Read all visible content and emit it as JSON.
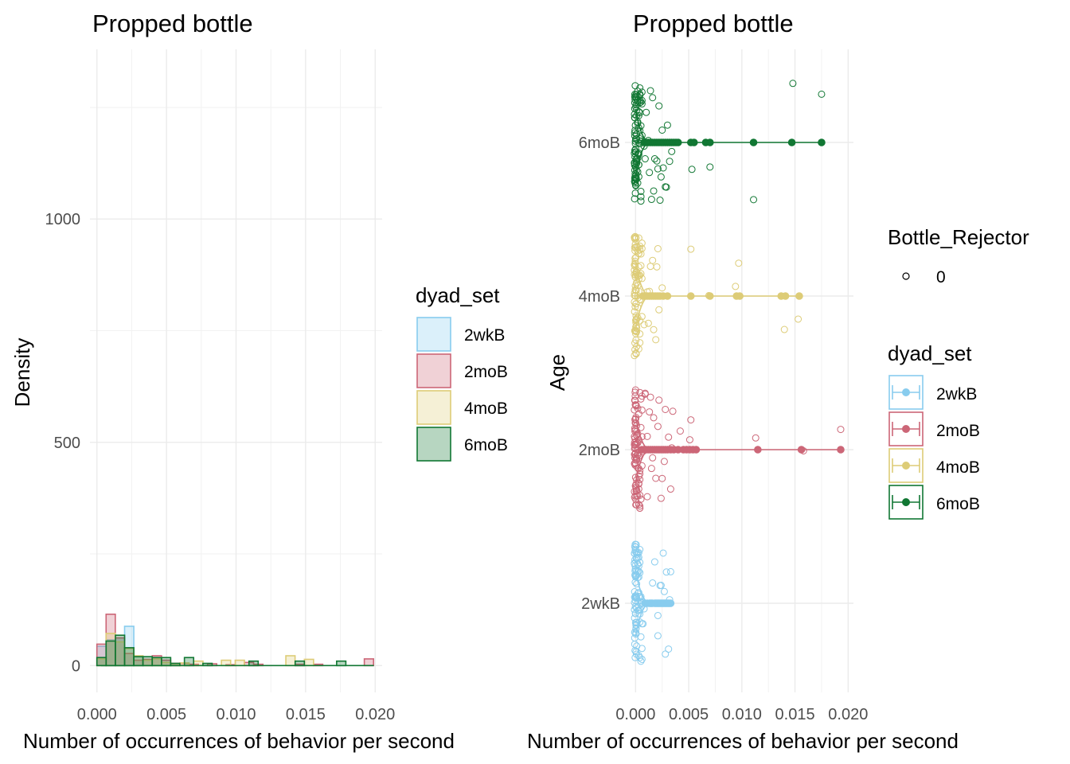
{
  "colors": {
    "2wkB": "#88CCEE",
    "2moB": "#CC6677",
    "4moB": "#DDCC77",
    "6moB": "#117733"
  },
  "chart_data": [
    {
      "type": "histogram",
      "title": "Propped bottle",
      "xlabel": "Number of occurrences of behavior per second",
      "ylabel": "Density",
      "xlim": [
        -0.0005,
        0.0205
      ],
      "ylim": [
        -60,
        1380
      ],
      "x_ticks": [
        0.0,
        0.005,
        0.01,
        0.015,
        0.02
      ],
      "x_tick_labels": [
        "0.000",
        "0.005",
        "0.010",
        "0.015",
        "0.020"
      ],
      "y_ticks": [
        0,
        500,
        1000
      ],
      "y_tick_labels": [
        "0",
        "500",
        "1000"
      ],
      "bin_width": 0.000662,
      "grid": true,
      "legend": {
        "title": "dyad_set",
        "position": "right",
        "entries": [
          "2wkB",
          "2moB",
          "4moB",
          "6moB"
        ]
      },
      "series": [
        {
          "name": "2wkB",
          "bins": [
            [
              0.00033,
              43
            ],
            [
              0.00099,
              58
            ],
            [
              0.00166,
              62
            ],
            [
              0.00232,
              88
            ],
            [
              0.00298,
              20
            ]
          ]
        },
        {
          "name": "2moB",
          "bins": [
            [
              0.00033,
              48
            ],
            [
              0.00099,
              115
            ],
            [
              0.00166,
              62
            ],
            [
              0.00232,
              27
            ],
            [
              0.00298,
              12
            ],
            [
              0.00364,
              14
            ],
            [
              0.00431,
              22
            ],
            [
              0.00497,
              12
            ],
            [
              0.00563,
              5
            ],
            [
              0.00629,
              5
            ],
            [
              0.00696,
              3
            ],
            [
              0.00828,
              4
            ],
            [
              0.00961,
              2
            ],
            [
              0.01093,
              7
            ],
            [
              0.0116,
              3
            ],
            [
              0.01458,
              3
            ],
            [
              0.0159,
              3
            ],
            [
              0.01955,
              15
            ]
          ]
        },
        {
          "name": "4moB",
          "bins": [
            [
              0.00033,
              15
            ],
            [
              0.00099,
              72
            ],
            [
              0.00166,
              53
            ],
            [
              0.00232,
              38
            ],
            [
              0.00298,
              22
            ],
            [
              0.00364,
              12
            ],
            [
              0.00431,
              15
            ],
            [
              0.00497,
              7
            ],
            [
              0.00563,
              4
            ],
            [
              0.00629,
              6
            ],
            [
              0.00729,
              10
            ],
            [
              0.00928,
              12
            ],
            [
              0.01027,
              12
            ],
            [
              0.01391,
              22
            ],
            [
              0.01524,
              14
            ]
          ]
        },
        {
          "name": "6moB",
          "bins": [
            [
              0.00033,
              18
            ],
            [
              0.00099,
              55
            ],
            [
              0.00166,
              68
            ],
            [
              0.00232,
              40
            ],
            [
              0.00298,
              20
            ],
            [
              0.00364,
              20
            ],
            [
              0.00431,
              18
            ],
            [
              0.00497,
              18
            ],
            [
              0.00563,
              5
            ],
            [
              0.00662,
              18
            ],
            [
              0.00795,
              5
            ],
            [
              0.01126,
              10
            ],
            [
              0.01458,
              10
            ],
            [
              0.01756,
              10
            ]
          ]
        }
      ]
    },
    {
      "type": "scatter",
      "title": "Propped bottle",
      "xlabel": "Number of occurrences of behavior per second",
      "ylabel": "Age",
      "xlim": [
        -0.001,
        0.0205
      ],
      "x_ticks": [
        0.0,
        0.005,
        0.01,
        0.015,
        0.02
      ],
      "x_tick_labels": [
        "0.000",
        "0.005",
        "0.010",
        "0.015",
        "0.020"
      ],
      "categories": [
        "2wkB",
        "2moB",
        "4moB",
        "6moB"
      ],
      "grid": true,
      "legends": [
        {
          "title": "Bottle_Rejector",
          "entries": [
            "0"
          ]
        },
        {
          "title": "dyad_set",
          "entries": [
            "2wkB",
            "2moB",
            "4moB",
            "6moB"
          ]
        }
      ],
      "series": [
        {
          "name": "2wkB",
          "points": [
            0.0002,
            0.0002,
            0.0003,
            0.0004,
            0.0003,
            0.0005,
            0.0002,
            0.0006,
            0.0004,
            0.0003,
            0.0002,
            0.0005,
            0.0004,
            0.0003,
            0.0006,
            0.0002,
            0.0007,
            0.0004,
            0.0003,
            0.0005,
            0.0002,
            0.0004,
            0.0003,
            0.0006,
            0.0002,
            0.0005,
            0.0004,
            0.0003,
            0.0002,
            0.0004,
            0.0006,
            0.0003,
            0.0002,
            0.0005,
            0.0004,
            0.0003,
            0.0008,
            0.0016,
            0.0018,
            0.0021,
            0.0023,
            0.0024,
            0.0026,
            0.0028,
            0.0029,
            0.0031,
            0.0032,
            0.0033,
            0.0021,
            0.0027
          ],
          "center_points": [
            0.0009,
            0.0011,
            0.0013,
            0.0014,
            0.0015,
            0.0016,
            0.0018,
            0.0019,
            0.002,
            0.0021,
            0.0022,
            0.0023,
            0.0024,
            0.0025,
            0.0026,
            0.0027,
            0.0028,
            0.0029,
            0.003,
            0.0031,
            0.0032,
            0.0033
          ],
          "line_range": [
            0.0,
            0.0033
          ]
        },
        {
          "name": "2moB",
          "points": [
            0.0002,
            0.0003,
            0.0002,
            0.0004,
            0.0003,
            0.0005,
            0.0002,
            0.0004,
            0.0006,
            0.0003,
            0.0002,
            0.0005,
            0.0004,
            0.0003,
            0.0002,
            0.0006,
            0.0004,
            0.0003,
            0.0005,
            0.0002,
            0.0004,
            0.0003,
            0.0006,
            0.0002,
            0.0005,
            0.0004,
            0.0003,
            0.0002,
            0.0004,
            0.0006,
            0.0003,
            0.0002,
            0.0005,
            0.0004,
            0.0003,
            0.0007,
            0.0009,
            0.0011,
            0.0013,
            0.0015,
            0.0017,
            0.0019,
            0.0021,
            0.0024,
            0.0027,
            0.0031,
            0.0033,
            0.0035,
            0.0042,
            0.0051,
            0.0011,
            0.0016,
            0.0022,
            0.0028,
            0.0034,
            0.0052,
            0.0113,
            0.0158,
            0.0193,
            0.0009,
            0.0014,
            0.0025
          ],
          "center_points": [
            0.0006,
            0.0008,
            0.001,
            0.0012,
            0.0014,
            0.0016,
            0.0018,
            0.002,
            0.0022,
            0.0024,
            0.0026,
            0.0028,
            0.003,
            0.0033,
            0.0036,
            0.004,
            0.0045,
            0.0048,
            0.0051,
            0.0054,
            0.0057,
            0.0115,
            0.0156,
            0.0193
          ],
          "line_range": [
            0.0,
            0.0193
          ]
        },
        {
          "name": "4moB",
          "points": [
            0.0002,
            0.0003,
            0.0002,
            0.0004,
            0.0003,
            0.0005,
            0.0002,
            0.0004,
            0.0006,
            0.0003,
            0.0002,
            0.0005,
            0.0004,
            0.0003,
            0.0002,
            0.0006,
            0.0004,
            0.0003,
            0.0005,
            0.0002,
            0.0004,
            0.0003,
            0.0006,
            0.0002,
            0.0005,
            0.0004,
            0.0003,
            0.0002,
            0.0004,
            0.0006,
            0.0003,
            0.0008,
            0.0011,
            0.0014,
            0.0017,
            0.002,
            0.0022,
            0.0025,
            0.0013,
            0.0019,
            0.0052,
            0.0069,
            0.0094,
            0.0097,
            0.014,
            0.0153,
            0.0016,
            0.0012,
            0.0021
          ],
          "center_points": [
            0.0007,
            0.0009,
            0.0011,
            0.0013,
            0.0015,
            0.0017,
            0.0019,
            0.0021,
            0.0023,
            0.0026,
            0.003,
            0.0052,
            0.007,
            0.0095,
            0.0098,
            0.0137,
            0.0141,
            0.0154
          ],
          "line_range": [
            0.0,
            0.0154
          ]
        },
        {
          "name": "6moB",
          "points": [
            0.0002,
            0.0003,
            0.0002,
            0.0004,
            0.0003,
            0.0005,
            0.0002,
            0.0004,
            0.0006,
            0.0003,
            0.0002,
            0.0005,
            0.0004,
            0.0003,
            0.0002,
            0.0006,
            0.0004,
            0.0003,
            0.0005,
            0.0002,
            0.0004,
            0.0003,
            0.0006,
            0.0002,
            0.0005,
            0.0004,
            0.0003,
            0.0002,
            0.0004,
            0.0006,
            0.0003,
            0.0002,
            0.0005,
            0.0004,
            0.0003,
            0.0002,
            0.0004,
            0.0005,
            0.0008,
            0.001,
            0.0012,
            0.0014,
            0.0016,
            0.0018,
            0.002,
            0.0022,
            0.0024,
            0.0026,
            0.0028,
            0.003,
            0.0032,
            0.0034,
            0.0013,
            0.0017,
            0.0021,
            0.0025,
            0.0029,
            0.0053,
            0.007,
            0.0111,
            0.0148,
            0.0175,
            0.0009,
            0.0015,
            0.0023
          ],
          "center_points": [
            0.0008,
            0.001,
            0.0012,
            0.0014,
            0.0016,
            0.0018,
            0.002,
            0.0022,
            0.0024,
            0.0026,
            0.0028,
            0.003,
            0.0032,
            0.0034,
            0.0036,
            0.0038,
            0.004,
            0.0052,
            0.0055,
            0.0066,
            0.007,
            0.0111,
            0.0147,
            0.0175
          ],
          "line_range": [
            0.0,
            0.0175
          ]
        }
      ]
    }
  ]
}
